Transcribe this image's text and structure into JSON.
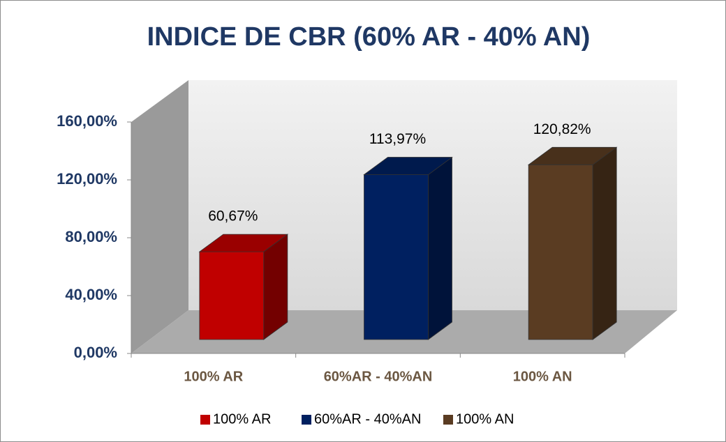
{
  "chart_data": {
    "type": "bar3d",
    "title": "INDICE DE CBR (60% AR - 40% AN)",
    "categories": [
      "100% AR",
      "60%AR - 40%AN",
      "100% AN"
    ],
    "series": [
      {
        "name": "100% AR",
        "color": "#c00000"
      },
      {
        "name": "60%AR - 40%AN",
        "color": "#002060"
      },
      {
        "name": "100% AN",
        "color": "#5a3c22"
      }
    ],
    "values": [
      60.67,
      113.97,
      120.82
    ],
    "value_labels": [
      "60,67%",
      "113,97%",
      "120,82%"
    ],
    "ylim": [
      0,
      160
    ],
    "yticks": [
      {
        "value": 0,
        "label": "0,00%"
      },
      {
        "value": 40,
        "label": "40,00%"
      },
      {
        "value": 80,
        "label": "80,00%"
      },
      {
        "value": 120,
        "label": "120,00%"
      },
      {
        "value": 160,
        "label": "160,00%"
      }
    ],
    "legend": "bottom"
  }
}
